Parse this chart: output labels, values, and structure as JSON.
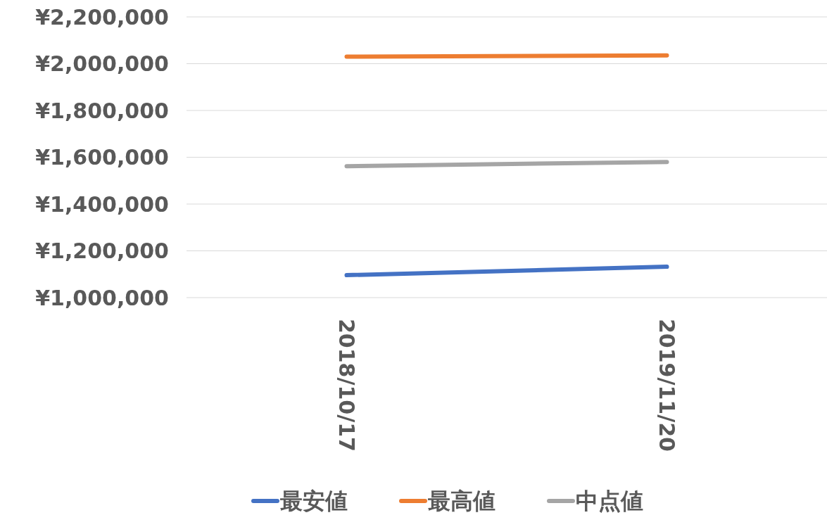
{
  "chart_data": {
    "type": "line",
    "categories": [
      "2018/10/17",
      "2019/11/20"
    ],
    "series": [
      {
        "name": "最安値",
        "color": "#4472c4",
        "values": [
          1096000,
          1132000
        ]
      },
      {
        "name": "最高値",
        "color": "#ed7d31",
        "values": [
          2030000,
          2035000
        ]
      },
      {
        "name": "中点値",
        "color": "#a5a5a5",
        "values": [
          1562000,
          1580000
        ]
      }
    ],
    "ylim": [
      1000000,
      2200000
    ],
    "yticks": [
      {
        "value": 1000000,
        "label": "¥1,000,000"
      },
      {
        "value": 1200000,
        "label": "¥1,200,000"
      },
      {
        "value": 1400000,
        "label": "¥1,400,000"
      },
      {
        "value": 1600000,
        "label": "¥1,600,000"
      },
      {
        "value": 1800000,
        "label": "¥1,800,000"
      },
      {
        "value": 2000000,
        "label": "¥2,000,000"
      },
      {
        "value": 2200000,
        "label": "¥2,200,000"
      }
    ],
    "grid": "y",
    "legend": "bottom",
    "line_style": "solid",
    "marker": "none"
  }
}
